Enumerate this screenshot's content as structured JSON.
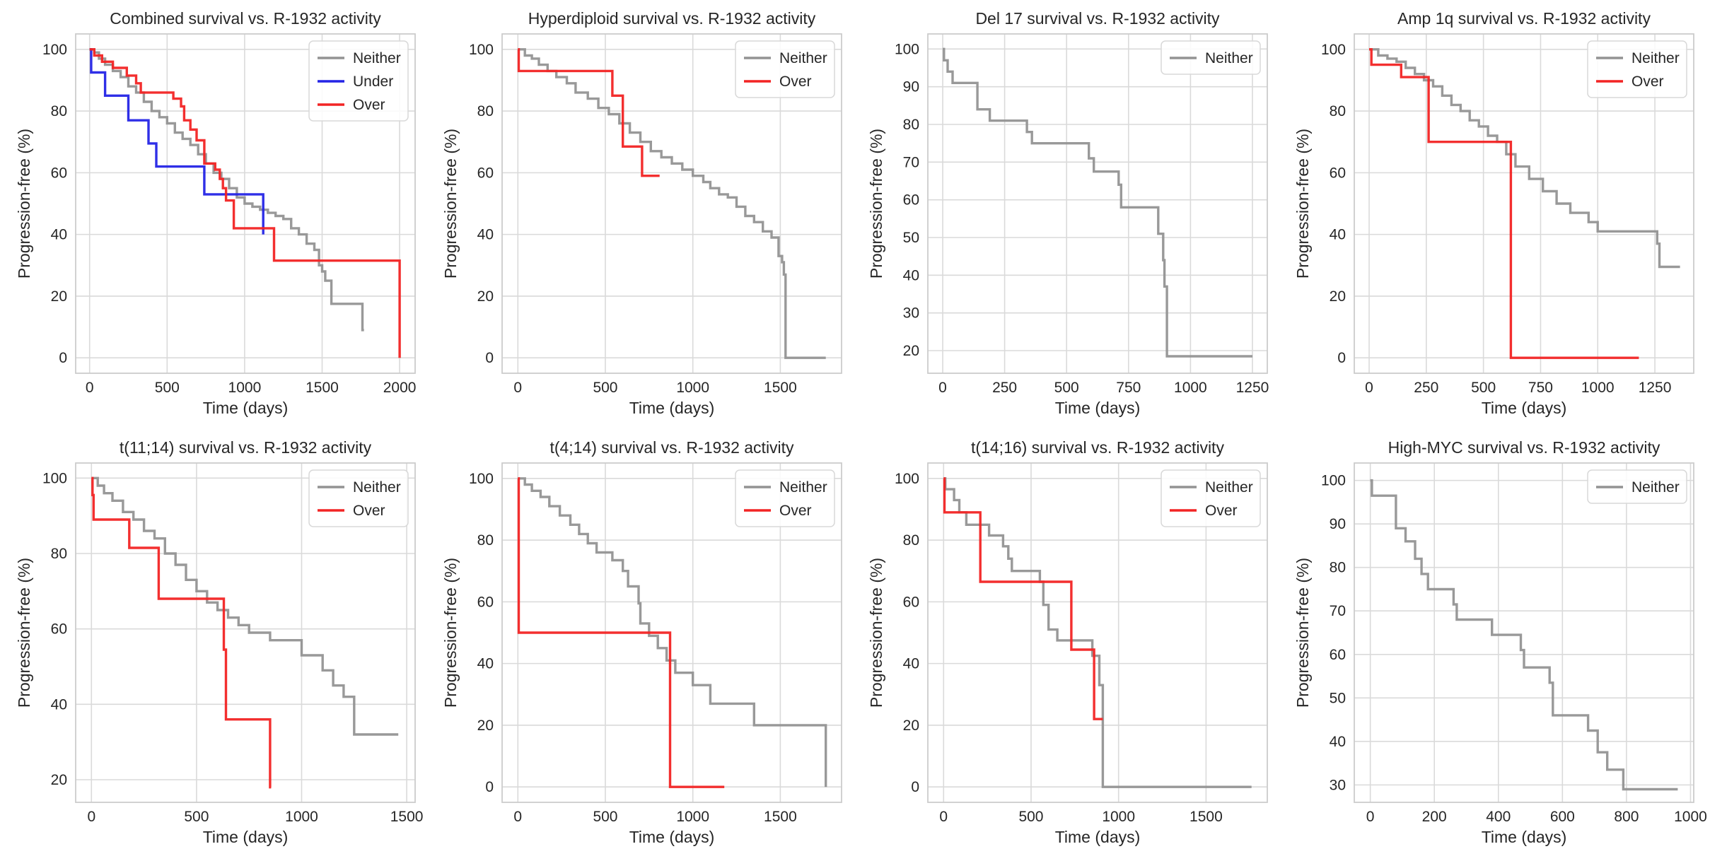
{
  "figure": {
    "background": "#ffffff",
    "grid_color": "#dadada",
    "spine_color": "#cccccc"
  },
  "series_colors": {
    "Neither": "#939393",
    "Under": "#2424e6",
    "Over": "#f22424"
  },
  "chart_data": [
    {
      "type": "line",
      "step": true,
      "title": "Combined survival vs. R-1932 activity",
      "xlabel": "Time (days)",
      "ylabel": "Progression-free (%)",
      "xlim": [
        -90,
        2100
      ],
      "ylim": [
        -5,
        105
      ],
      "xticks": [
        0,
        500,
        1000,
        1500,
        2000
      ],
      "yticks": [
        0,
        20,
        40,
        60,
        80,
        100
      ],
      "legend": "top-right",
      "series": [
        {
          "name": "Neither",
          "x": [
            0,
            30,
            60,
            100,
            150,
            200,
            250,
            300,
            350,
            400,
            450,
            500,
            550,
            600,
            650,
            700,
            750,
            800,
            850,
            900,
            950,
            1000,
            1050,
            1100,
            1150,
            1200,
            1250,
            1300,
            1350,
            1400,
            1450,
            1480,
            1500,
            1520,
            1560,
            1760,
            1770
          ],
          "y": [
            100,
            99,
            97,
            95,
            93,
            91,
            88,
            86,
            83,
            80,
            78,
            76,
            73,
            71,
            69,
            66,
            63,
            60,
            58,
            55,
            52,
            50,
            49,
            48,
            47,
            46,
            45,
            42,
            40,
            37,
            35,
            30,
            28,
            25,
            17.5,
            9,
            9
          ]
        },
        {
          "name": "Under",
          "x": [
            0,
            10,
            100,
            250,
            380,
            430,
            740,
            1120
          ],
          "y": [
            100,
            92.5,
            85,
            77,
            69.5,
            62,
            53,
            40
          ]
        },
        {
          "name": "Over",
          "x": [
            0,
            30,
            80,
            150,
            240,
            300,
            330,
            540,
            590,
            610,
            650,
            690,
            740,
            810,
            840,
            860,
            880,
            930,
            1190,
            2000
          ],
          "y": [
            100,
            98,
            96,
            94,
            91.5,
            89,
            86,
            84,
            81.5,
            77,
            74,
            70.5,
            63,
            61,
            58,
            55,
            51,
            42,
            31.5,
            0
          ]
        }
      ]
    },
    {
      "type": "line",
      "step": true,
      "title": "Hyperdiploid survival vs. R-1932 activity",
      "xlabel": "Time (days)",
      "ylabel": "Progression-free (%)",
      "xlim": [
        -90,
        1850
      ],
      "ylim": [
        -5,
        105
      ],
      "xticks": [
        0,
        500,
        1000,
        1500
      ],
      "yticks": [
        0,
        20,
        40,
        60,
        80,
        100
      ],
      "legend": "top-right",
      "series": [
        {
          "name": "Neither",
          "x": [
            0,
            40,
            80,
            120,
            170,
            220,
            280,
            330,
            400,
            460,
            520,
            580,
            640,
            700,
            760,
            820,
            880,
            940,
            1000,
            1060,
            1100,
            1150,
            1200,
            1250,
            1300,
            1350,
            1400,
            1450,
            1490,
            1510,
            1520,
            1530,
            1760
          ],
          "y": [
            100,
            98,
            97,
            95,
            93,
            91,
            89,
            86,
            84,
            81,
            79,
            76,
            73,
            70,
            67,
            65,
            63,
            61,
            59,
            57,
            55,
            53,
            52,
            49,
            46,
            44,
            41,
            39,
            33,
            31,
            27,
            0,
            0
          ]
        },
        {
          "name": "Over",
          "x": [
            0,
            5,
            540,
            600,
            710,
            810
          ],
          "y": [
            100,
            93,
            85,
            68.5,
            59,
            59
          ]
        }
      ]
    },
    {
      "type": "line",
      "step": true,
      "title": "Del 17 survival vs. R-1932 activity",
      "xlabel": "Time (days)",
      "ylabel": "Progression-free (%)",
      "xlim": [
        -60,
        1310
      ],
      "ylim": [
        14,
        104
      ],
      "xticks": [
        0,
        250,
        500,
        750,
        1000,
        1250
      ],
      "yticks": [
        20,
        30,
        40,
        50,
        60,
        70,
        80,
        90,
        100
      ],
      "legend": "top-right",
      "series": [
        {
          "name": "Neither",
          "x": [
            0,
            5,
            20,
            40,
            140,
            190,
            340,
            360,
            590,
            610,
            710,
            720,
            870,
            890,
            895,
            905,
            1250
          ],
          "y": [
            100,
            97,
            94,
            91,
            84,
            81,
            78,
            75,
            71,
            67.5,
            64,
            58,
            51,
            44,
            37,
            18.5,
            18.5
          ]
        }
      ]
    },
    {
      "type": "line",
      "step": true,
      "title": "Amp 1q survival vs. R-1932 activity",
      "xlabel": "Time (days)",
      "ylabel": "Progression-free (%)",
      "xlim": [
        -65,
        1420
      ],
      "ylim": [
        -5,
        105
      ],
      "xticks": [
        0,
        250,
        500,
        750,
        1000,
        1250
      ],
      "yticks": [
        0,
        20,
        40,
        60,
        80,
        100
      ],
      "legend": "top-right",
      "series": [
        {
          "name": "Neither",
          "x": [
            0,
            40,
            80,
            120,
            160,
            200,
            240,
            280,
            320,
            360,
            400,
            440,
            480,
            520,
            560,
            600,
            640,
            700,
            760,
            820,
            880,
            960,
            1000,
            1240,
            1260,
            1270,
            1360
          ],
          "y": [
            100,
            98,
            97,
            96,
            94,
            92,
            90,
            88,
            85,
            82,
            80,
            77,
            75,
            72,
            70,
            66,
            62,
            58,
            54,
            50,
            47,
            44,
            41,
            41,
            37,
            29.5,
            29.5
          ]
        },
        {
          "name": "Over",
          "x": [
            0,
            10,
            140,
            260,
            620,
            1180
          ],
          "y": [
            100,
            95,
            91,
            70,
            0,
            0
          ]
        }
      ]
    },
    {
      "type": "line",
      "step": true,
      "title": "t(11;14) survival vs. R-1932 activity",
      "xlabel": "Time (days)",
      "ylabel": "Progression-free (%)",
      "xlim": [
        -75,
        1540
      ],
      "ylim": [
        14,
        104
      ],
      "xticks": [
        0,
        500,
        1000,
        1500
      ],
      "yticks": [
        20,
        40,
        60,
        80,
        100
      ],
      "legend": "top-right",
      "series": [
        {
          "name": "Neither",
          "x": [
            0,
            30,
            60,
            100,
            150,
            200,
            250,
            300,
            350,
            400,
            450,
            500,
            550,
            600,
            650,
            700,
            750,
            850,
            1000,
            1050,
            1100,
            1150,
            1200,
            1250,
            1460
          ],
          "y": [
            100,
            98,
            96,
            94,
            91,
            89,
            86,
            84,
            80,
            77,
            73,
            70,
            67,
            65,
            63,
            61,
            59,
            57,
            53,
            53,
            49,
            45,
            42,
            32,
            32
          ]
        },
        {
          "name": "Over",
          "x": [
            0,
            5,
            10,
            180,
            320,
            630,
            640,
            850,
            855
          ],
          "y": [
            100,
            95.5,
            89,
            81.5,
            68,
            54.5,
            36,
            18,
            18
          ]
        }
      ]
    },
    {
      "type": "line",
      "step": true,
      "title": "t(4;14) survival vs. R-1932 activity",
      "xlabel": "Time (days)",
      "ylabel": "Progression-free (%)",
      "xlim": [
        -90,
        1850
      ],
      "ylim": [
        -5,
        105
      ],
      "xticks": [
        0,
        500,
        1000,
        1500
      ],
      "yticks": [
        0,
        20,
        40,
        60,
        80,
        100
      ],
      "legend": "top-right",
      "series": [
        {
          "name": "Neither",
          "x": [
            0,
            40,
            80,
            130,
            180,
            240,
            300,
            350,
            400,
            450,
            540,
            600,
            630,
            690,
            700,
            750,
            800,
            850,
            900,
            1000,
            1100,
            1350,
            1760
          ],
          "y": [
            100,
            98,
            96,
            94,
            91,
            88,
            85,
            82,
            79,
            76,
            73.5,
            70,
            65,
            59.5,
            53,
            49,
            45,
            41,
            37,
            33,
            27,
            20,
            0
          ]
        },
        {
          "name": "Over",
          "x": [
            0,
            5,
            870,
            1180
          ],
          "y": [
            100,
            50,
            0,
            0
          ]
        }
      ]
    },
    {
      "type": "line",
      "step": true,
      "title": "t(14;16) survival vs. R-1932 activity",
      "xlabel": "Time (days)",
      "ylabel": "Progression-free (%)",
      "xlim": [
        -90,
        1850
      ],
      "ylim": [
        -5,
        105
      ],
      "xticks": [
        0,
        500,
        1000,
        1500
      ],
      "yticks": [
        0,
        20,
        40,
        60,
        80,
        100
      ],
      "legend": "top-right",
      "series": [
        {
          "name": "Neither",
          "x": [
            0,
            10,
            60,
            90,
            130,
            260,
            340,
            370,
            390,
            550,
            570,
            600,
            650,
            850,
            890,
            910,
            1760
          ],
          "y": [
            100,
            96.5,
            93,
            89,
            85,
            81.5,
            78,
            74,
            70,
            66.5,
            59,
            51,
            47.5,
            42.5,
            33,
            0,
            0
          ]
        },
        {
          "name": "Over",
          "x": [
            0,
            5,
            210,
            730,
            860,
            910
          ],
          "y": [
            100,
            89,
            66.5,
            44.5,
            22,
            22
          ]
        }
      ]
    },
    {
      "type": "line",
      "step": true,
      "title": "High-MYC survival vs. R-1932 activity",
      "xlabel": "Time (days)",
      "ylabel": "Progression-free (%)",
      "xlim": [
        -50,
        1010
      ],
      "ylim": [
        26,
        104
      ],
      "xticks": [
        0,
        200,
        400,
        600,
        800,
        1000
      ],
      "yticks": [
        30,
        40,
        50,
        60,
        70,
        80,
        90,
        100
      ],
      "legend": "top-right",
      "series": [
        {
          "name": "Neither",
          "x": [
            0,
            5,
            80,
            110,
            140,
            160,
            180,
            260,
            270,
            380,
            470,
            480,
            560,
            570,
            680,
            710,
            740,
            790,
            960
          ],
          "y": [
            100,
            96.5,
            89,
            86,
            82,
            78.5,
            75,
            71.5,
            68,
            64.5,
            61,
            57,
            53.5,
            46,
            42.5,
            37.5,
            33.5,
            29,
            29
          ]
        }
      ]
    }
  ]
}
